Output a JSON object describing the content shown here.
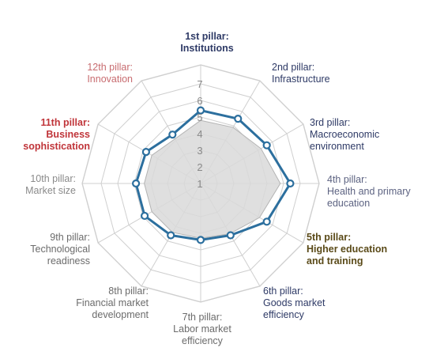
{
  "chart_data": {
    "type": "radar",
    "axis_range": [
      1,
      7
    ],
    "ticks": [
      "1",
      "2",
      "3",
      "4",
      "5",
      "6",
      "7"
    ],
    "grid": true,
    "categories": [
      {
        "line1": "1st pillar:",
        "line2": "Institutions",
        "line3": ""
      },
      {
        "line1": "2nd pillar:",
        "line2": "Infrastructure",
        "line3": ""
      },
      {
        "line1": "3rd pillar:",
        "line2": "Macroeconomic",
        "line3": "environment"
      },
      {
        "line1": "4th pillar:",
        "line2": "Health and primary",
        "line3": "education"
      },
      {
        "line1": "5th pillar:",
        "line2": "Higher education",
        "line3": "and training"
      },
      {
        "line1": "6th pillar:",
        "line2": "Goods market",
        "line3": "efficiency"
      },
      {
        "line1": "7th pillar:",
        "line2": "Labor market",
        "line3": "efficiency"
      },
      {
        "line1": "8th pillar:",
        "line2": "Financial market",
        "line3": "development"
      },
      {
        "line1": "9th pillar:",
        "line2": "Technological",
        "line3": "readiness"
      },
      {
        "line1": "10th pillar:",
        "line2": "Market size",
        "line3": ""
      },
      {
        "line1": "11th pillar:",
        "line2": "Business",
        "line3": "sophistication"
      },
      {
        "line1": "12th pillar:",
        "line2": "Innovation",
        "line3": ""
      }
    ],
    "series": [
      {
        "values": [
          5.4,
          5.5,
          5.6,
          6.4,
          5.6,
          4.6,
          4.4,
          4.6,
          4.9,
          4.9,
          4.8,
          4.4
        ],
        "color": "#2c6f9e"
      },
      {
        "values": [
          4.8,
          4.9,
          5.2,
          5.8,
          5.1,
          4.5,
          4.3,
          4.4,
          4.4,
          4.4,
          4.4,
          4.1
        ],
        "color": "#b3b3b3"
      }
    ]
  },
  "colors": {
    "navy": "#2e3a66",
    "slate": "#5d6382",
    "gold": "#5a4a18",
    "gray": "#6b6b6b",
    "lightgray": "#8a8a8a",
    "red": "#c0353a",
    "pink": "#c86c70",
    "grid": "#cfcfcf"
  }
}
